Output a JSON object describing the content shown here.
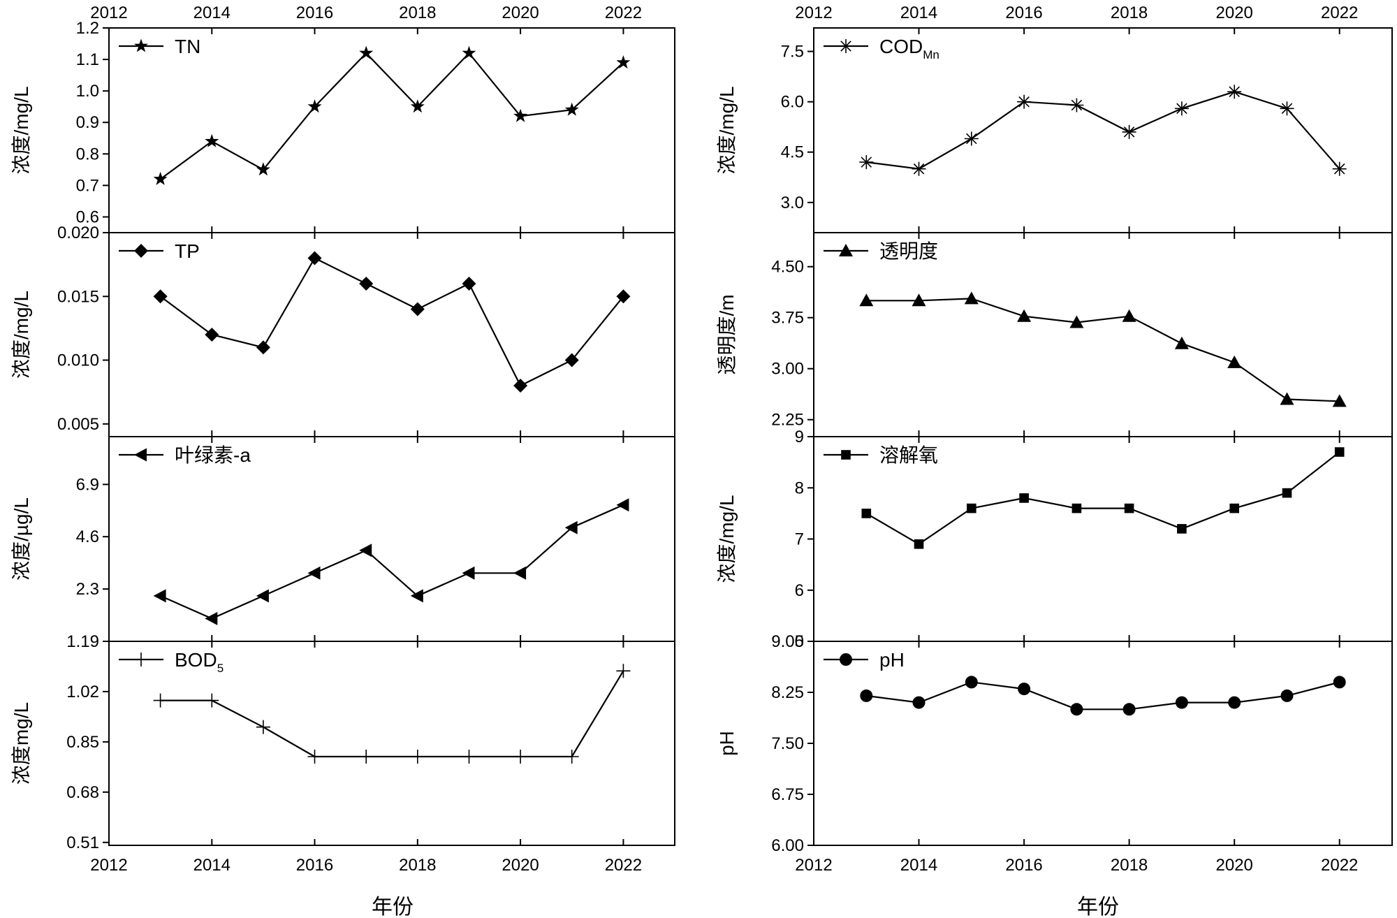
{
  "figure": {
    "xlabel_left": "年份",
    "xlabel_right": "年份"
  },
  "chart_data": [
    {
      "type": "line",
      "id": "tn",
      "column": "left",
      "row": 0,
      "legend": "TN",
      "legend_sub": "",
      "marker": "star",
      "ylabel": "浓度/mg/L",
      "xlim": [
        2012,
        2023
      ],
      "ylim": [
        0.55,
        1.2
      ],
      "x_ticks": [
        2012,
        2014,
        2016,
        2018,
        2020,
        2022
      ],
      "x_tick_labels": [
        "2012",
        "2014",
        "2016",
        "2018",
        "2020",
        "2022"
      ],
      "y_ticks": [
        0.6,
        0.7,
        0.8,
        0.9,
        1.0,
        1.1,
        1.2
      ],
      "y_tick_labels": [
        "0.6",
        "0.7",
        "0.8",
        "0.9",
        "1.0",
        "1.1",
        "1.2"
      ],
      "show_top_tick_labels": true,
      "show_bottom_tick_labels": false,
      "x": [
        2013,
        2014,
        2015,
        2016,
        2017,
        2018,
        2019,
        2020,
        2021,
        2022
      ],
      "y": [
        0.72,
        0.84,
        0.75,
        0.95,
        1.12,
        0.95,
        1.12,
        0.92,
        0.94,
        1.09
      ]
    },
    {
      "type": "line",
      "id": "tp",
      "column": "left",
      "row": 1,
      "legend": "TP",
      "legend_sub": "",
      "marker": "diamond",
      "ylabel": "浓度/mg/L",
      "xlim": [
        2012,
        2023
      ],
      "ylim": [
        0.004,
        0.02
      ],
      "x_ticks": [
        2012,
        2014,
        2016,
        2018,
        2020,
        2022
      ],
      "x_tick_labels": [
        "2012",
        "2014",
        "2016",
        "2018",
        "2020",
        "2022"
      ],
      "y_ticks": [
        0.005,
        0.01,
        0.015,
        0.02
      ],
      "y_tick_labels": [
        "0.005",
        "0.010",
        "0.015",
        "0.020"
      ],
      "show_top_tick_labels": false,
      "show_bottom_tick_labels": false,
      "x": [
        2013,
        2014,
        2015,
        2016,
        2017,
        2018,
        2019,
        2020,
        2021,
        2022
      ],
      "y": [
        0.015,
        0.012,
        0.011,
        0.018,
        0.016,
        0.014,
        0.016,
        0.008,
        0.01,
        0.015
      ]
    },
    {
      "type": "line",
      "id": "chla",
      "column": "left",
      "row": 2,
      "legend": "叶绿素-a",
      "legend_sub": "",
      "marker": "triangle-left",
      "ylabel": "浓度/µg/L",
      "xlim": [
        2012,
        2023
      ],
      "ylim": [
        0.0,
        9.0
      ],
      "x_ticks": [
        2012,
        2014,
        2016,
        2018,
        2020,
        2022
      ],
      "x_tick_labels": [
        "2012",
        "2014",
        "2016",
        "2018",
        "2020",
        "2022"
      ],
      "y_ticks": [
        2.3,
        4.6,
        6.9
      ],
      "y_tick_labels": [
        "2.3",
        "4.6",
        "6.9"
      ],
      "show_top_tick_labels": false,
      "show_bottom_tick_labels": false,
      "x": [
        2013,
        2014,
        2015,
        2016,
        2017,
        2018,
        2019,
        2020,
        2021,
        2022
      ],
      "y": [
        2.0,
        1.0,
        2.0,
        3.0,
        4.0,
        2.0,
        3.0,
        3.0,
        5.0,
        6.0
      ]
    },
    {
      "type": "line",
      "id": "bod5",
      "column": "left",
      "row": 3,
      "legend": "BOD",
      "legend_sub": "5",
      "marker": "plus",
      "ylabel": "浓度mg/L",
      "xlim": [
        2012,
        2023
      ],
      "ylim": [
        0.5,
        1.19
      ],
      "x_ticks": [
        2012,
        2014,
        2016,
        2018,
        2020,
        2022
      ],
      "x_tick_labels": [
        "2012",
        "2014",
        "2016",
        "2018",
        "2020",
        "2022"
      ],
      "y_ticks": [
        0.51,
        0.68,
        0.85,
        1.02,
        1.19
      ],
      "y_tick_labels": [
        "0.51",
        "0.68",
        "0.85",
        "1.02",
        "1.19"
      ],
      "show_top_tick_labels": false,
      "show_bottom_tick_labels": true,
      "x": [
        2013,
        2014,
        2015,
        2016,
        2017,
        2018,
        2019,
        2020,
        2021,
        2022
      ],
      "y": [
        0.99,
        0.99,
        0.9,
        0.8,
        0.8,
        0.8,
        0.8,
        0.8,
        0.8,
        1.09
      ]
    },
    {
      "type": "line",
      "id": "codmn",
      "column": "right",
      "row": 0,
      "legend": "COD",
      "legend_sub": "Mn",
      "marker": "asterisk",
      "ylabel": "浓度/mg/L",
      "xlim": [
        2012,
        2023
      ],
      "ylim": [
        2.1,
        8.2
      ],
      "x_ticks": [
        2012,
        2014,
        2016,
        2018,
        2020,
        2022
      ],
      "x_tick_labels": [
        "2012",
        "2014",
        "2016",
        "2018",
        "2020",
        "2022"
      ],
      "y_ticks": [
        3.0,
        4.5,
        6.0,
        7.5
      ],
      "y_tick_labels": [
        "3.0",
        "4.5",
        "6.0",
        "7.5"
      ],
      "show_top_tick_labels": true,
      "show_bottom_tick_labels": false,
      "x": [
        2013,
        2014,
        2015,
        2016,
        2017,
        2018,
        2019,
        2020,
        2021,
        2022
      ],
      "y": [
        4.2,
        4.0,
        4.9,
        6.0,
        5.9,
        5.1,
        5.8,
        6.3,
        5.8,
        4.0
      ]
    },
    {
      "type": "line",
      "id": "transparency",
      "column": "right",
      "row": 1,
      "legend": "透明度",
      "legend_sub": "",
      "marker": "triangle-up",
      "ylabel": "透明度/m",
      "xlim": [
        2012,
        2023
      ],
      "ylim": [
        2.0,
        5.0
      ],
      "x_ticks": [
        2012,
        2014,
        2016,
        2018,
        2020,
        2022
      ],
      "x_tick_labels": [
        "2012",
        "2014",
        "2016",
        "2018",
        "2020",
        "2022"
      ],
      "y_ticks": [
        2.25,
        3.0,
        3.75,
        4.5
      ],
      "y_tick_labels": [
        "2.25",
        "3.00",
        "3.75",
        "4.50"
      ],
      "show_top_tick_labels": false,
      "show_bottom_tick_labels": false,
      "x": [
        2013,
        2014,
        2015,
        2016,
        2017,
        2018,
        2019,
        2020,
        2021,
        2022
      ],
      "y": [
        4.0,
        4.0,
        4.03,
        3.77,
        3.68,
        3.77,
        3.37,
        3.09,
        2.55,
        2.52
      ]
    },
    {
      "type": "line",
      "id": "do",
      "column": "right",
      "row": 2,
      "legend": "溶解氧",
      "legend_sub": "",
      "marker": "square",
      "ylabel": "浓度/mg/L",
      "xlim": [
        2012,
        2023
      ],
      "ylim": [
        5.0,
        9.0
      ],
      "x_ticks": [
        2012,
        2014,
        2016,
        2018,
        2020,
        2022
      ],
      "x_tick_labels": [
        "2012",
        "2014",
        "2016",
        "2018",
        "2020",
        "2022"
      ],
      "y_ticks": [
        5,
        6,
        7,
        8,
        9
      ],
      "y_tick_labels": [
        "5",
        "6",
        "7",
        "8",
        "9"
      ],
      "show_top_tick_labels": false,
      "show_bottom_tick_labels": false,
      "x": [
        2013,
        2014,
        2015,
        2016,
        2017,
        2018,
        2019,
        2020,
        2021,
        2022
      ],
      "y": [
        7.5,
        6.9,
        7.6,
        7.8,
        7.6,
        7.6,
        7.2,
        7.6,
        7.9,
        8.7
      ]
    },
    {
      "type": "line",
      "id": "ph",
      "column": "right",
      "row": 3,
      "legend": "pH",
      "legend_sub": "",
      "marker": "circle",
      "ylabel": "pH",
      "xlim": [
        2012,
        2023
      ],
      "ylim": [
        6.0,
        9.0
      ],
      "x_ticks": [
        2012,
        2014,
        2016,
        2018,
        2020,
        2022
      ],
      "x_tick_labels": [
        "2012",
        "2014",
        "2016",
        "2018",
        "2020",
        "2022"
      ],
      "y_ticks": [
        6.0,
        6.75,
        7.5,
        8.25,
        9.0
      ],
      "y_tick_labels": [
        "6.00",
        "6.75",
        "7.50",
        "8.25",
        "9.00"
      ],
      "show_top_tick_labels": false,
      "show_bottom_tick_labels": true,
      "x": [
        2013,
        2014,
        2015,
        2016,
        2017,
        2018,
        2019,
        2020,
        2021,
        2022
      ],
      "y": [
        8.2,
        8.1,
        8.4,
        8.3,
        8.0,
        8.0,
        8.1,
        8.1,
        8.2,
        8.4
      ]
    }
  ]
}
